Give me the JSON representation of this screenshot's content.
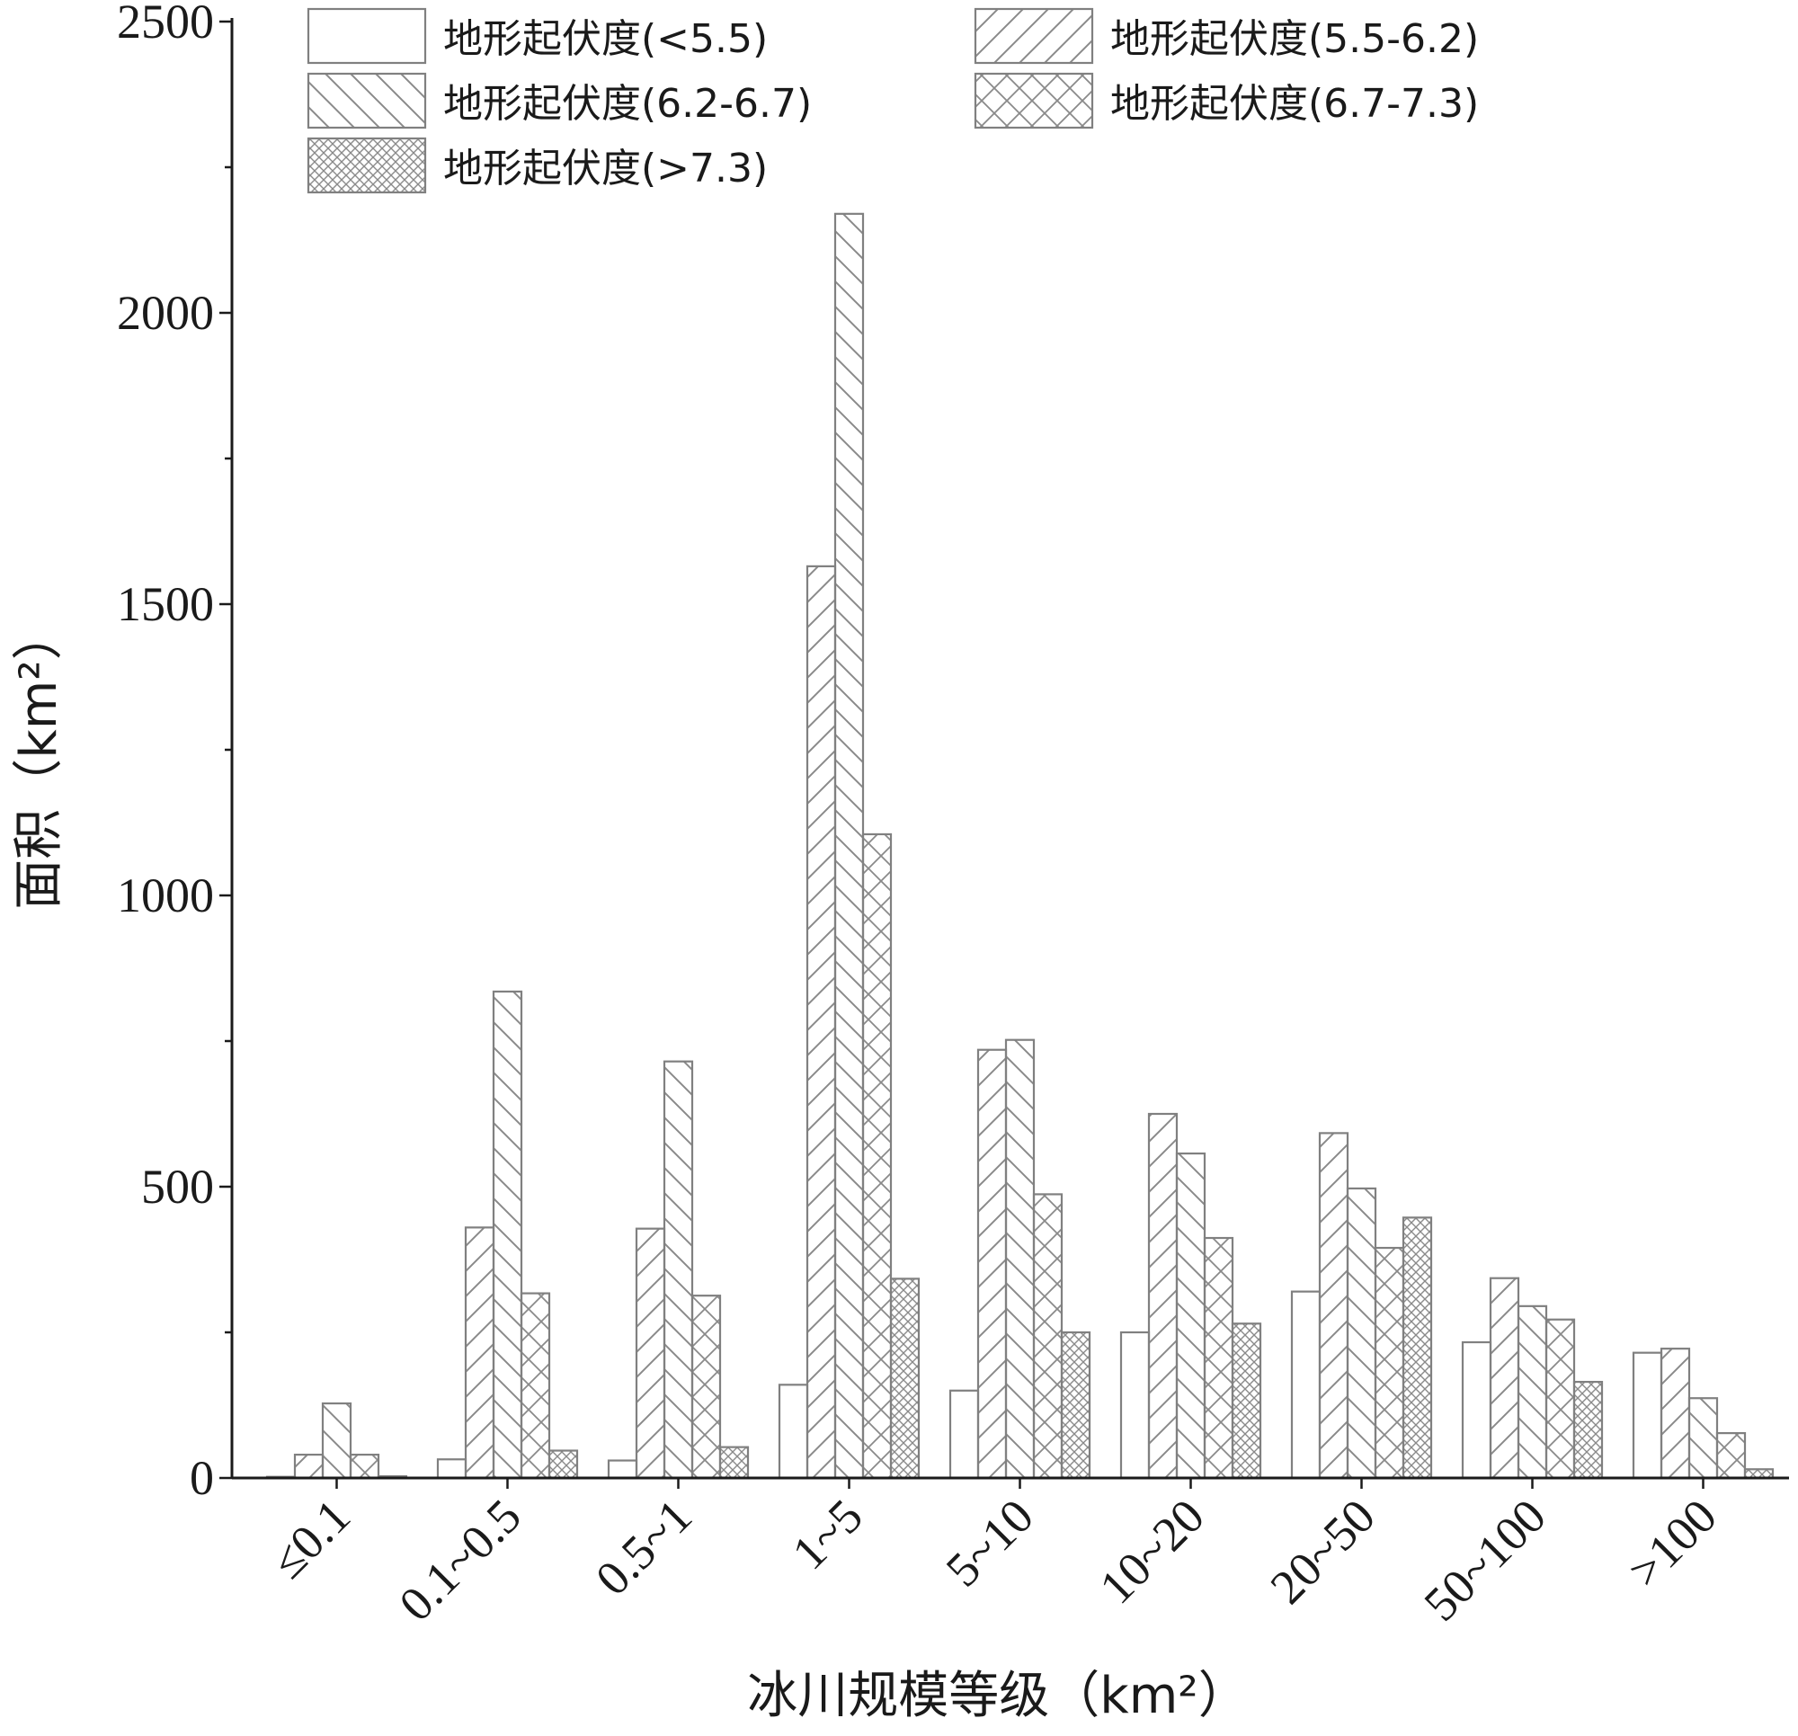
{
  "chart_data": {
    "type": "bar",
    "title": "",
    "xlabel": "冰川规模等级（km²）",
    "ylabel": "面积（km²）",
    "ylim": [
      0,
      2500
    ],
    "y_ticks": [
      "0",
      "500",
      "1000",
      "1500",
      "2000",
      "2500"
    ],
    "categories": [
      "≤0.1",
      "0.1~0.5",
      "0.5~1",
      "1~5",
      "5~10",
      "10~20",
      "20~50",
      "50~100",
      ">100"
    ],
    "legend_position": "top-left",
    "series": [
      {
        "name": "地形起伏度(<5.5)",
        "pattern": "none",
        "values": [
          2,
          32,
          30,
          160,
          150,
          250,
          320,
          233,
          215
        ]
      },
      {
        "name": "地形起伏度(5.5-6.2)",
        "pattern": "diagonal-up",
        "values": [
          40,
          430,
          428,
          1565,
          735,
          625,
          592,
          343,
          222
        ]
      },
      {
        "name": "地形起伏度(6.2-6.7)",
        "pattern": "diagonal-down",
        "values": [
          128,
          835,
          715,
          2170,
          752,
          557,
          497,
          295,
          137
        ]
      },
      {
        "name": "地形起伏度(6.7-7.3)",
        "pattern": "crosshatch-wide",
        "values": [
          40,
          317,
          313,
          1105,
          487,
          412,
          395,
          272,
          77
        ]
      },
      {
        "name": "地形起伏度(>7.3)",
        "pattern": "crosshatch-dense",
        "values": [
          3,
          47,
          53,
          342,
          250,
          265,
          447,
          165,
          15
        ]
      }
    ],
    "colors": {
      "bar_stroke": "#808080",
      "hatch": "#8a8a8a",
      "axis": "#1a1a1a",
      "background": "#ffffff"
    }
  }
}
